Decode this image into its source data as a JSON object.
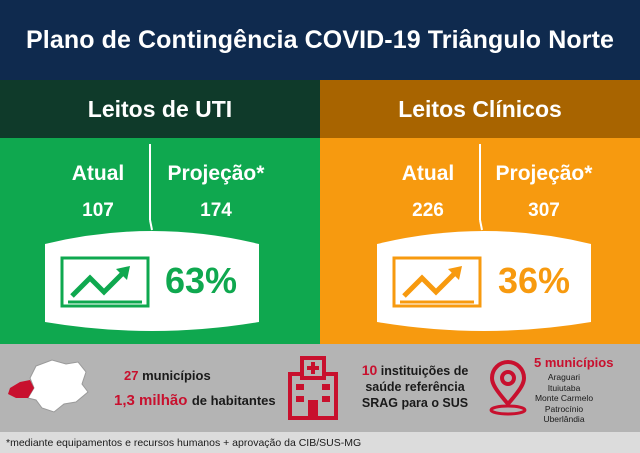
{
  "header": {
    "title": "Plano de Contingência COVID-19 Triângulo Norte"
  },
  "uti": {
    "title": "Leitos de UTI",
    "atual_label": "Atual",
    "atual_value": "107",
    "projecao_label": "Projeção*",
    "projecao_value": "174",
    "percent": "63%",
    "percent_value": 63
  },
  "clinicos": {
    "title": "Leitos Clínicos",
    "atual_label": "Atual",
    "atual_value": "226",
    "projecao_label": "Projeção*",
    "projecao_value": "307",
    "percent": "36%",
    "percent_value": 36
  },
  "footer": {
    "municipios_count": "27",
    "municipios_label": "municípios",
    "habitantes_count": "1,3 milhão",
    "habitantes_label": "de habitantes",
    "instituicoes_count": "10",
    "instituicoes_line1": "instituições de",
    "instituicoes_line2": "saúde referência",
    "instituicoes_line3": "SRAG para o SUS",
    "cinco_municipios": "5 municípios",
    "cities": [
      "Araguari",
      "Ituiutaba",
      "Monte Carmelo",
      "Patrocínio",
      "Uberlândia"
    ]
  },
  "note": "*mediante equipamentos e recursos humanos + aprovação da CIB/SUS-MG",
  "colors": {
    "navy": "#0f2a4e",
    "dark_green": "#0f3a2a",
    "green": "#0fa84f",
    "brown": "#a86400",
    "orange": "#f79a0f",
    "red": "#c8102e",
    "gray": "#b4b4b4"
  }
}
